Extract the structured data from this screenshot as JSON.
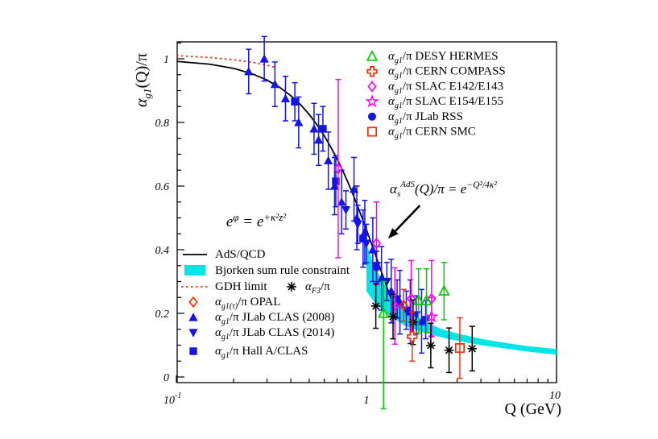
{
  "background": "#ffffff",
  "chart_data": {
    "type": "scatter",
    "title": "",
    "xlabel": "Q (GeV)",
    "ylabel_parts": {
      "pre": "α",
      "sub": "g1",
      "post": "(Q)/π"
    },
    "xscale": "log",
    "xlim": [
      0.1,
      10
    ],
    "ylim": [
      -0.02,
      1.07
    ],
    "grid": false,
    "x_ticks": [
      {
        "v": 0.1,
        "base": "10",
        "sup": "-1"
      },
      {
        "v": 1,
        "base": "1",
        "sup": ""
      },
      {
        "v": 10,
        "base": "10",
        "sup": ""
      }
    ],
    "y_ticks": [
      {
        "v": 0,
        "label": "0"
      },
      {
        "v": 0.2,
        "label": "0.2"
      },
      {
        "v": 0.4,
        "label": "0.4"
      },
      {
        "v": 0.6,
        "label": "0.6"
      },
      {
        "v": 0.8,
        "label": "0.8"
      },
      {
        "v": 1,
        "label": "1"
      }
    ],
    "curves": {
      "ads": {
        "name": "AdS/QCD",
        "style": "solid",
        "color": "#000000",
        "points": [
          [
            0.1,
            0.992
          ],
          [
            0.15,
            0.983
          ],
          [
            0.2,
            0.97
          ],
          [
            0.25,
            0.953
          ],
          [
            0.3,
            0.933
          ],
          [
            0.35,
            0.91
          ],
          [
            0.4,
            0.884
          ],
          [
            0.45,
            0.856
          ],
          [
            0.5,
            0.825
          ],
          [
            0.55,
            0.792
          ],
          [
            0.6,
            0.758
          ],
          [
            0.65,
            0.722
          ],
          [
            0.7,
            0.686
          ],
          [
            0.75,
            0.649
          ],
          [
            0.8,
            0.611
          ],
          [
            0.85,
            0.574
          ],
          [
            0.9,
            0.536
          ],
          [
            0.95,
            0.499
          ],
          [
            1.0,
            0.463
          ],
          [
            1.05,
            0.428
          ],
          [
            1.1,
            0.394
          ],
          [
            1.15,
            0.361
          ],
          [
            1.2,
            0.33
          ],
          [
            1.25,
            0.301
          ],
          [
            1.3,
            0.272
          ],
          [
            1.35,
            0.246
          ]
        ]
      },
      "gdh": {
        "name": "GDH limit",
        "style": "dashed",
        "color": "#ff2d00",
        "points": [
          [
            0.1,
            1.01
          ],
          [
            0.15,
            1.004
          ],
          [
            0.2,
            0.997
          ],
          [
            0.25,
            0.989
          ],
          [
            0.3,
            0.98
          ],
          [
            0.33,
            0.973
          ]
        ]
      }
    },
    "band": {
      "name": "Bjorken sum rule constraint",
      "color": "#00e5e5",
      "q": [
        1.0,
        1.1,
        1.3,
        1.6,
        2.0,
        2.5,
        3.0,
        4.0,
        5.0,
        7.0,
        10.0
      ],
      "upper": [
        0.42,
        0.345,
        0.275,
        0.215,
        0.175,
        0.15,
        0.137,
        0.12,
        0.11,
        0.097,
        0.088
      ],
      "lower": [
        0.27,
        0.235,
        0.195,
        0.16,
        0.14,
        0.124,
        0.114,
        0.1,
        0.092,
        0.08,
        0.07
      ]
    },
    "series": {
      "hermes": {
        "marker": "triangle-open",
        "color": "#00cc00",
        "label": {
          "pre": "α",
          "sub": "g1",
          "post": "/π DESY HERMES"
        },
        "points": [
          [
            1.23,
            0.2,
            0.3,
            0.1
          ],
          [
            1.88,
            0.24,
            0.1,
            0.1
          ],
          [
            2.07,
            0.24,
            0.1,
            0.1
          ],
          [
            2.56,
            0.27,
            0.09,
            0.09
          ]
        ]
      },
      "compass": {
        "marker": "cross-open",
        "color": "#ff2d00",
        "label": {
          "pre": "α",
          "sub": "g1",
          "post": "/π CERN COMPASS"
        },
        "points": [
          [
            1.74,
            0.127,
            0.077,
            0.077
          ]
        ]
      },
      "e142": {
        "marker": "diamond-open",
        "color": "#ff00ff",
        "label": {
          "pre": "α",
          "sub": "g1",
          "post": "/π SLAC E142/E143"
        },
        "points": [
          [
            0.71,
            0.655,
            0.28,
            0.28
          ],
          [
            1.13,
            0.42,
            0.13,
            0.13
          ],
          [
            1.41,
            0.223,
            0.12,
            0.12
          ],
          [
            1.72,
            0.246,
            0.12,
            0.12
          ],
          [
            2.2,
            0.246,
            0.12,
            0.12
          ]
        ]
      },
      "e154": {
        "marker": "star-open",
        "color": "#ff00ff",
        "label": {
          "pre": "α",
          "sub": "g1",
          "post": "/π SLAC E154/E155"
        },
        "points": [
          [
            2.2,
            0.189,
            0.06,
            0.06
          ]
        ]
      },
      "rss": {
        "marker": "circle-filled",
        "color": "#1414e8",
        "label": {
          "pre": "α",
          "sub": "g1",
          "post": "/π JLab RSS"
        },
        "points": [
          [
            1.13,
            0.345,
            0.05,
            0.05
          ]
        ]
      },
      "smc": {
        "marker": "square-open",
        "color": "#ff2d00",
        "label": {
          "pre": "α",
          "sub": "g1",
          "post": "/π CERN SMC"
        },
        "points": [
          [
            3.1,
            0.091,
            0.095,
            0.095
          ]
        ]
      },
      "f3": {
        "marker": "asterisk",
        "color": "#000000",
        "label": {
          "pre": "α",
          "sub": "F3",
          "post": "/π"
        },
        "points": [
          [
            1.12,
            0.223,
            0.07,
            0.07
          ],
          [
            1.38,
            0.19,
            0.07,
            0.07
          ],
          [
            1.76,
            0.172,
            0.07,
            0.07
          ],
          [
            2.18,
            0.099,
            0.07,
            0.07
          ],
          [
            2.72,
            0.084,
            0.07,
            0.07
          ],
          [
            3.6,
            0.089,
            0.07,
            0.07
          ]
        ]
      },
      "opal": {
        "marker": "diamond-open",
        "color": "#ff2d00",
        "label": {
          "pre": "α",
          "sub": "g1(τ)",
          "post": "/π OPAL"
        },
        "points": [
          [
            1.57,
            0.225,
            0.05,
            0.05
          ]
        ]
      },
      "clas2008": {
        "marker": "triangle-filled",
        "color": "#1414e8",
        "label": {
          "pre": "α",
          "sub": "g1",
          "post": "/π JLab CLAS (2008)"
        },
        "points": [
          [
            0.24,
            0.96,
            0.07,
            0.07
          ],
          [
            0.29,
            1.0,
            0.07,
            0.07
          ],
          [
            0.33,
            0.92,
            0.07,
            0.07
          ],
          [
            0.375,
            0.875,
            0.07,
            0.07
          ],
          [
            0.44,
            0.8,
            0.08,
            0.08
          ],
          [
            0.53,
            0.78,
            0.08,
            0.08
          ],
          [
            0.56,
            0.745,
            0.08,
            0.08
          ],
          [
            0.63,
            0.68,
            0.09,
            0.09
          ],
          [
            0.68,
            0.6,
            0.09,
            0.09
          ],
          [
            0.74,
            0.55,
            0.1,
            0.1
          ],
          [
            0.86,
            0.59,
            0.1,
            0.1
          ],
          [
            0.89,
            0.5,
            0.1,
            0.1
          ],
          [
            0.98,
            0.455,
            0.1,
            0.1
          ],
          [
            1.08,
            0.4,
            0.1,
            0.1
          ],
          [
            1.2,
            0.31,
            0.1,
            0.1
          ],
          [
            1.35,
            0.27,
            0.1,
            0.1
          ],
          [
            1.5,
            0.235,
            0.1,
            0.1
          ],
          [
            1.7,
            0.205,
            0.1,
            0.1
          ],
          [
            1.95,
            0.175,
            0.1,
            0.1
          ]
        ]
      },
      "clas2014": {
        "marker": "triangle-down-filled",
        "color": "#1414e8",
        "label": {
          "pre": "α",
          "sub": "g1",
          "post": "/π JLab CLAS (2014)"
        },
        "points": [
          [
            0.78,
            0.525,
            0.06,
            0.06
          ],
          [
            0.9,
            0.48,
            0.06,
            0.06
          ],
          [
            1.0,
            0.42,
            0.06,
            0.06
          ],
          [
            1.13,
            0.35,
            0.06,
            0.06
          ],
          [
            1.28,
            0.3,
            0.06,
            0.06
          ],
          [
            1.45,
            0.245,
            0.06,
            0.06
          ],
          [
            1.62,
            0.21,
            0.06,
            0.06
          ],
          [
            1.83,
            0.195,
            0.06,
            0.06
          ],
          [
            2.05,
            0.18,
            0.06,
            0.06
          ]
        ]
      },
      "halla": {
        "marker": "square-filled",
        "color": "#1414e8",
        "label": {
          "pre": "α",
          "sub": "g1",
          "post": "/π Hall A/CLAS"
        },
        "points": [
          [
            0.42,
            0.865,
            0.06,
            0.06
          ],
          [
            0.59,
            0.78,
            0.07,
            0.07
          ],
          [
            0.69,
            0.615,
            0.08,
            0.08
          ],
          [
            0.96,
            0.435,
            0.09,
            0.09
          ]
        ]
      }
    },
    "legend_top": {
      "keys": [
        "hermes",
        "compass",
        "e142",
        "e154",
        "rss",
        "smc"
      ]
    },
    "legend_left": {
      "rows": [
        {
          "swatch": "line",
          "color": "#000000",
          "label": {
            "text": "AdS/QCD"
          }
        },
        {
          "swatch": "band",
          "color": "#00e5e5",
          "label": {
            "text": "Bjorken sum rule constraint"
          }
        },
        {
          "swatch": "dashed",
          "color": "#ff2d00",
          "label": {
            "text": "GDH limit"
          },
          "extra_key": "f3"
        },
        {
          "key": "opal"
        },
        {
          "key": "clas2008"
        },
        {
          "key": "clas2014"
        },
        {
          "key": "halla"
        }
      ]
    },
    "annotations": {
      "formula_phi": {
        "base": "e",
        "sup": "φ",
        "eq": " = e",
        "sup2": "+κ²z²"
      },
      "formula_ads": {
        "alpha": "α",
        "sub": "s",
        "sup": "AdS",
        "mid": "(Q)/π = e",
        "exp": "−Q²/4κ²"
      },
      "arrow": {
        "from_q": 1.91,
        "from_v": 0.539,
        "to_q": 1.3,
        "to_v": 0.435
      }
    }
  }
}
